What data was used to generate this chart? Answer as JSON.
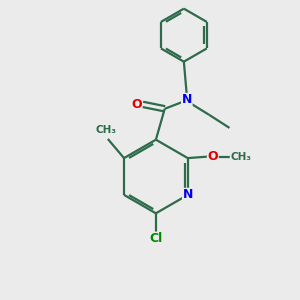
{
  "background_color": "#ebebeb",
  "bond_color": "#2d6b4a",
  "N_color": "#0000ee",
  "O_color": "#dd0000",
  "Cl_color": "#008800",
  "line_width": 1.6,
  "figsize": [
    3.0,
    3.0
  ],
  "dpi": 100,
  "xlim": [
    0,
    10
  ],
  "ylim": [
    0,
    10
  ]
}
